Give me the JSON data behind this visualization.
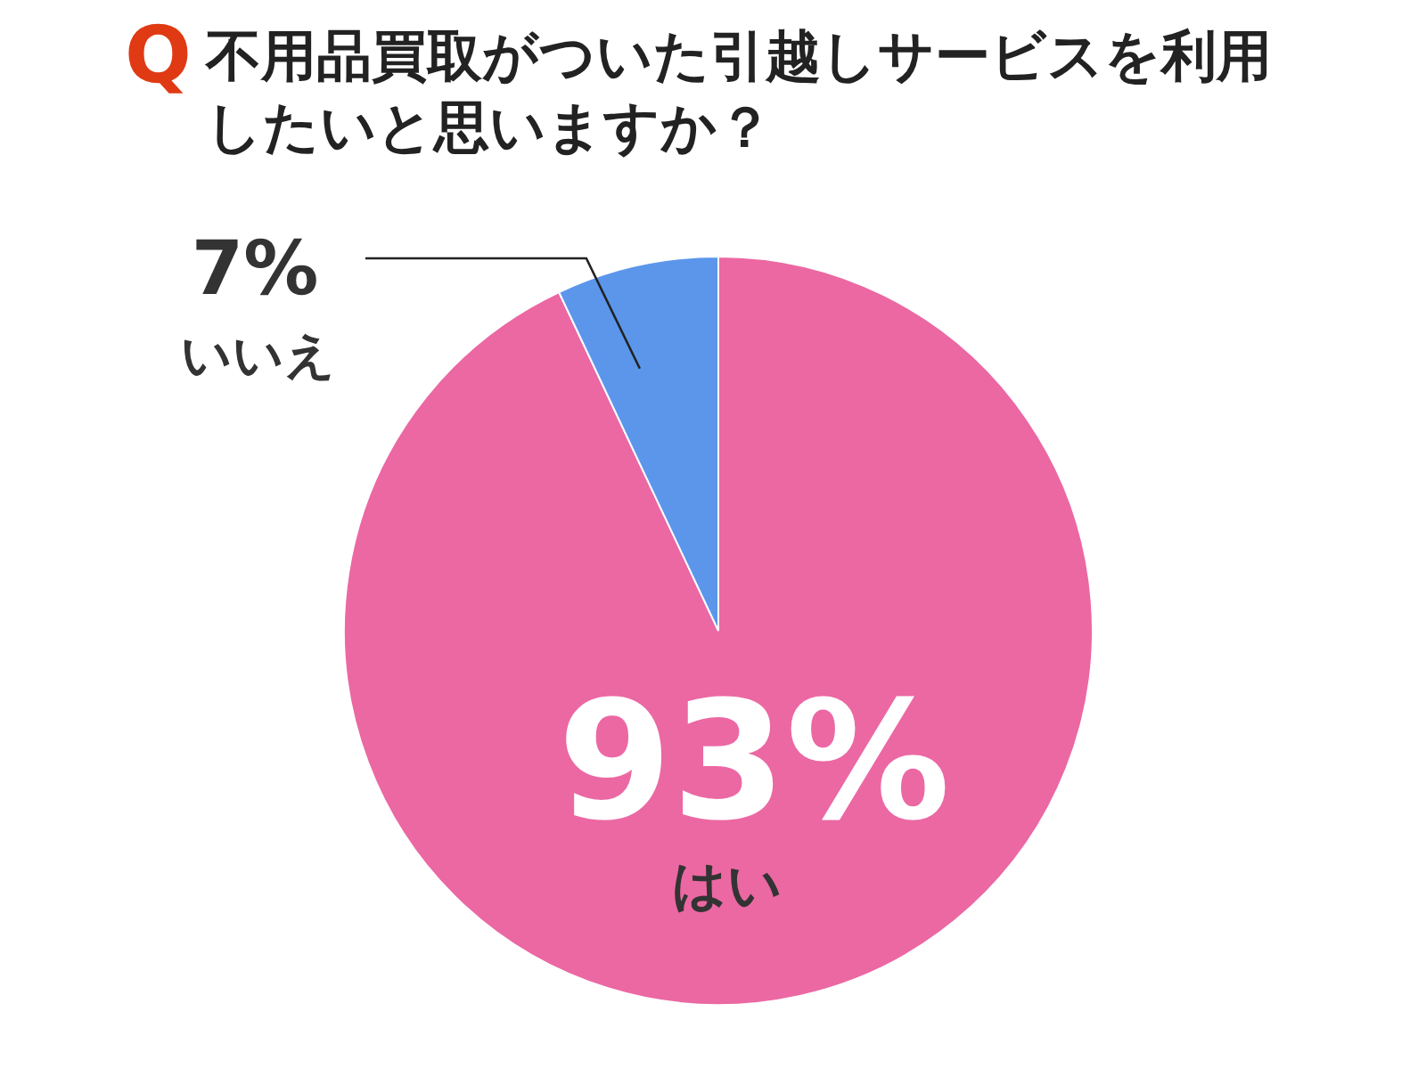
{
  "chart_data": {
    "type": "pie",
    "title": "Q不用品買取がついた引越しサービスを利用したいと思いますか？",
    "categories": [
      "はい",
      "いいえ"
    ],
    "values": [
      93,
      7
    ],
    "colors": [
      "#eb68a3",
      "#5b96eb"
    ],
    "value_labels": [
      "93%",
      "7%"
    ],
    "legend": false
  }
}
